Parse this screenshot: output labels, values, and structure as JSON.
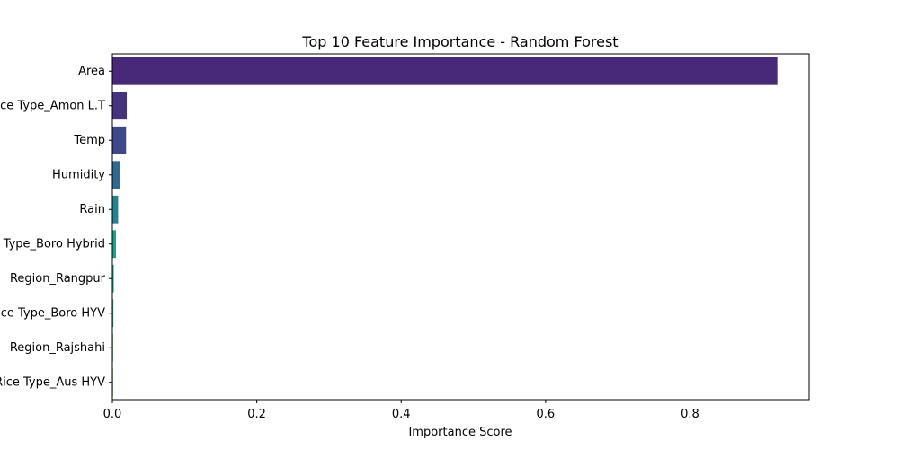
{
  "chart_data": {
    "type": "bar",
    "orientation": "horizontal",
    "title": "Top 10 Feature Importance - Random Forest",
    "xlabel": "Importance Score",
    "ylabel": "",
    "xlim": [
      0,
      0.965
    ],
    "xticks": [
      0.0,
      0.2,
      0.4,
      0.6,
      0.8
    ],
    "xtick_labels": [
      "0.0",
      "0.2",
      "0.4",
      "0.6",
      "0.8"
    ],
    "grid": false,
    "categories": [
      "Area",
      "Rice Type_Amon L.T",
      "Temp",
      "Humidity",
      "Rain",
      "Rice Type_Boro Hybrid",
      "Region_Rangpur",
      "Rice Type_Boro HYV",
      "Region_Rajshahi",
      "Rice Type_Aus HYV"
    ],
    "values": [
      0.921,
      0.02,
      0.019,
      0.01,
      0.008,
      0.005,
      0.002,
      0.0015,
      0.0008,
      0.0006
    ],
    "colors": [
      "#482878",
      "#46337e",
      "#3e4989",
      "#31688e",
      "#26828e",
      "#1f9e89",
      "#23a883",
      "#2db27d",
      "#3fbc73",
      "#6ece58"
    ]
  }
}
